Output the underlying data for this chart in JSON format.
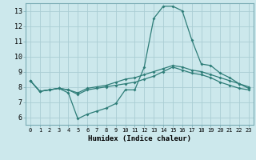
{
  "xlabel": "Humidex (Indice chaleur)",
  "xlim": [
    -0.5,
    23.5
  ],
  "ylim": [
    5.5,
    13.5
  ],
  "xticks": [
    0,
    1,
    2,
    3,
    4,
    5,
    6,
    7,
    8,
    9,
    10,
    11,
    12,
    13,
    14,
    15,
    16,
    17,
    18,
    19,
    20,
    21,
    22,
    23
  ],
  "yticks": [
    6,
    7,
    8,
    9,
    10,
    11,
    12,
    13
  ],
  "background_color": "#cce8ec",
  "grid_color": "#aacdd4",
  "line_color": "#2e7d78",
  "line1": [
    8.4,
    7.7,
    7.8,
    7.9,
    7.6,
    5.9,
    6.2,
    6.4,
    6.6,
    6.9,
    7.8,
    7.8,
    9.3,
    12.5,
    13.3,
    13.3,
    13.0,
    11.1,
    9.5,
    9.4,
    8.9,
    8.6,
    8.2,
    7.9
  ],
  "line2": [
    8.4,
    7.7,
    7.8,
    7.9,
    7.8,
    7.6,
    7.9,
    8.0,
    8.1,
    8.3,
    8.5,
    8.6,
    8.8,
    9.0,
    9.2,
    9.4,
    9.3,
    9.1,
    9.0,
    8.8,
    8.6,
    8.4,
    8.2,
    8.0
  ],
  "line3": [
    8.4,
    7.7,
    7.8,
    7.9,
    7.8,
    7.5,
    7.8,
    7.9,
    8.0,
    8.1,
    8.2,
    8.3,
    8.5,
    8.7,
    9.0,
    9.3,
    9.1,
    8.9,
    8.8,
    8.6,
    8.3,
    8.1,
    7.9,
    7.8
  ]
}
